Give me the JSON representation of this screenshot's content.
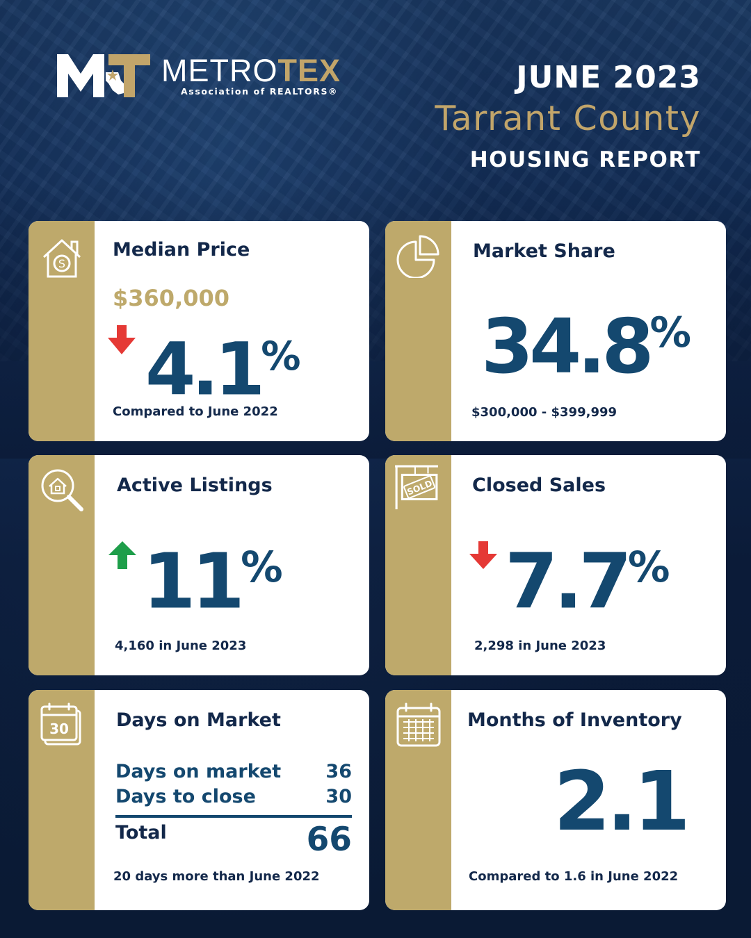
{
  "brand": {
    "word_white": "METRO",
    "word_gold": "TEX",
    "subtitle": "Association of REALTORS®",
    "colors": {
      "gold": "#c2a56a",
      "navy": "#13284a",
      "blue": "#14486f",
      "band": "#bea96b",
      "down": "#e53935",
      "up": "#1e9e4a"
    }
  },
  "header": {
    "date": "JUNE 2023",
    "county": "Tarrant County",
    "report": "HOUSING REPORT"
  },
  "cards": {
    "median_price": {
      "icon": "house-dollar-icon",
      "title": "Median Price",
      "price": "$360,000",
      "change_direction": "down",
      "change_number": "4.1",
      "change_symbol": "%",
      "note": "Compared to June 2022"
    },
    "market_share": {
      "icon": "pie-chart-icon",
      "title": "Market Share",
      "number": "34.8",
      "symbol": "%",
      "note": "$300,000 - $399,999"
    },
    "active_listings": {
      "icon": "house-search-icon",
      "title": "Active Listings",
      "change_direction": "up",
      "change_number": "11",
      "change_symbol": "%",
      "note": "4,160 in June 2023"
    },
    "closed_sales": {
      "icon": "sold-sign-icon",
      "title": "Closed Sales",
      "change_direction": "down",
      "change_number": "7.7",
      "change_symbol": "%",
      "note": "2,298 in June 2023"
    },
    "days_on_market": {
      "icon": "calendar-30-icon",
      "icon_text": "30",
      "title": "Days on Market",
      "rows": [
        {
          "label": "Days on market",
          "value": "36"
        },
        {
          "label": "Days to close",
          "value": "30"
        }
      ],
      "total_label": "Total",
      "total_value": "66",
      "note": "20 days more than June 2022"
    },
    "months_inventory": {
      "icon": "calendar-grid-icon",
      "title": "Months of Inventory",
      "number": "2.1",
      "note": "Compared to 1.6 in June 2022"
    }
  }
}
